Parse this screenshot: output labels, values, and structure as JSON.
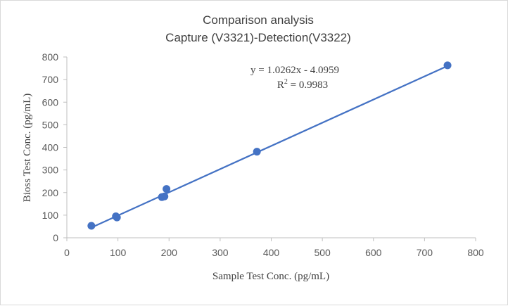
{
  "chart_data": {
    "type": "scatter",
    "title_line1": "Comparison analysis",
    "title_line2": "Capture (V3321)-Detection(V3322)",
    "xlabel": "Sample Test  Conc. (pg/mL)",
    "ylabel": "Bioss Test Conc. (pg/mL)",
    "xlim": [
      0,
      800
    ],
    "ylim": [
      0,
      800
    ],
    "x_ticks": [
      "0",
      "100",
      "200",
      "300",
      "400",
      "500",
      "600",
      "700",
      "800"
    ],
    "y_ticks": [
      "0",
      "100",
      "200",
      "300",
      "400",
      "500",
      "600",
      "700",
      "800"
    ],
    "grid": false,
    "legend": "none",
    "points": [
      {
        "x": 48,
        "y": 53
      },
      {
        "x": 96,
        "y": 95
      },
      {
        "x": 98,
        "y": 90
      },
      {
        "x": 186,
        "y": 180
      },
      {
        "x": 191,
        "y": 183
      },
      {
        "x": 195,
        "y": 216
      },
      {
        "x": 372,
        "y": 381
      },
      {
        "x": 745,
        "y": 763
      }
    ],
    "trendline": {
      "slope": 1.0262,
      "intercept": -4.0959,
      "x_range": [
        48,
        745
      ],
      "equation_text": "y = 1.0262x - 4.0959",
      "r2_label": "R",
      "r2_superscript": "2",
      "r2_value_text": " = 0.9983"
    },
    "colors": {
      "series": "#4472c4",
      "axis": "#bfbfbf",
      "text": "#404040"
    }
  }
}
